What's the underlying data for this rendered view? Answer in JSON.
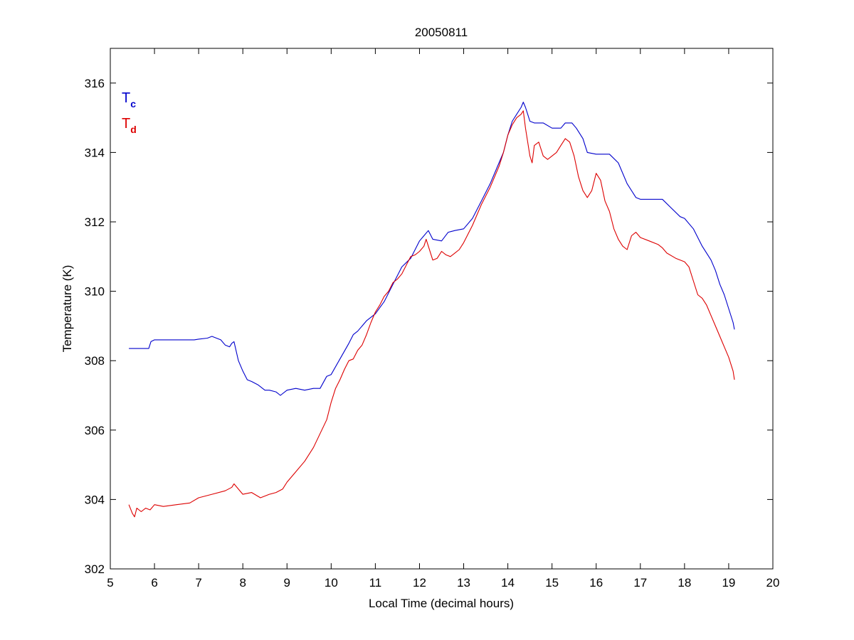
{
  "chart_data": {
    "type": "line",
    "title": "20050811",
    "xlabel": "Local Time (decimal hours)",
    "ylabel": "Temperature (K)",
    "xlim": [
      5,
      20
    ],
    "ylim": [
      302,
      317
    ],
    "xticks": [
      5,
      6,
      7,
      8,
      9,
      10,
      11,
      12,
      13,
      14,
      15,
      16,
      17,
      18,
      19,
      20
    ],
    "yticks": [
      302,
      304,
      306,
      308,
      310,
      312,
      314,
      316
    ],
    "grid": false,
    "legend_placement": "top-left",
    "legend": [
      {
        "base": "T",
        "sub": "c",
        "color": "#0000cc"
      },
      {
        "base": "T",
        "sub": "d",
        "color": "#dd0000"
      }
    ],
    "series": [
      {
        "legend_text": "Tc",
        "color": "#0000cc",
        "x": [
          5.42,
          5.5,
          5.75,
          5.87,
          5.92,
          6.0,
          6.5,
          6.9,
          7.0,
          7.2,
          7.3,
          7.5,
          7.6,
          7.7,
          7.75,
          7.8,
          7.9,
          8.0,
          8.1,
          8.2,
          8.35,
          8.5,
          8.6,
          8.75,
          8.85,
          9.0,
          9.2,
          9.4,
          9.6,
          9.75,
          9.9,
          10.0,
          10.2,
          10.4,
          10.5,
          10.6,
          10.8,
          11.0,
          11.2,
          11.4,
          11.6,
          11.8,
          12.0,
          12.1,
          12.2,
          12.3,
          12.5,
          12.65,
          12.8,
          13.0,
          13.2,
          13.4,
          13.6,
          13.8,
          13.9,
          14.0,
          14.1,
          14.2,
          14.3,
          14.35,
          14.4,
          14.45,
          14.5,
          14.6,
          14.8,
          15.0,
          15.2,
          15.3,
          15.45,
          15.55,
          15.7,
          15.8,
          16.0,
          16.3,
          16.5,
          16.7,
          16.9,
          17.0,
          17.3,
          17.5,
          17.7,
          17.9,
          18.0,
          18.2,
          18.4,
          18.6,
          18.7,
          18.8,
          18.9,
          19.0,
          19.1,
          19.13
        ],
        "y": [
          308.35,
          308.35,
          308.35,
          308.35,
          308.55,
          308.6,
          308.6,
          308.6,
          308.62,
          308.65,
          308.7,
          308.6,
          308.45,
          308.4,
          308.5,
          308.55,
          308.0,
          307.7,
          307.45,
          307.4,
          307.3,
          307.15,
          307.15,
          307.1,
          307.0,
          307.15,
          307.2,
          307.15,
          307.2,
          307.2,
          307.55,
          307.6,
          308.05,
          308.5,
          308.75,
          308.85,
          309.15,
          309.35,
          309.7,
          310.2,
          310.7,
          310.95,
          311.45,
          311.6,
          311.75,
          311.5,
          311.45,
          311.7,
          311.75,
          311.8,
          312.1,
          312.6,
          313.1,
          313.7,
          314.0,
          314.5,
          314.9,
          315.1,
          315.3,
          315.45,
          315.3,
          315.1,
          314.9,
          314.85,
          314.85,
          314.7,
          314.7,
          314.85,
          314.85,
          314.7,
          314.4,
          314.0,
          313.95,
          313.95,
          313.7,
          313.1,
          312.7,
          312.65,
          312.65,
          312.65,
          312.4,
          312.15,
          312.1,
          311.8,
          311.3,
          310.9,
          310.6,
          310.2,
          309.9,
          309.5,
          309.1,
          308.9
        ]
      },
      {
        "legend_text": "Td",
        "color": "#dd0000",
        "x": [
          5.42,
          5.5,
          5.55,
          5.6,
          5.7,
          5.8,
          5.9,
          6.0,
          6.2,
          6.5,
          6.8,
          7.0,
          7.3,
          7.6,
          7.75,
          7.8,
          8.0,
          8.2,
          8.4,
          8.6,
          8.75,
          8.9,
          9.0,
          9.2,
          9.4,
          9.6,
          9.75,
          9.9,
          10.0,
          10.1,
          10.2,
          10.3,
          10.4,
          10.5,
          10.6,
          10.7,
          10.8,
          10.9,
          11.0,
          11.1,
          11.2,
          11.3,
          11.4,
          11.5,
          11.6,
          11.7,
          11.8,
          11.9,
          12.0,
          12.1,
          12.15,
          12.2,
          12.3,
          12.4,
          12.5,
          12.6,
          12.7,
          12.8,
          12.9,
          13.0,
          13.2,
          13.4,
          13.6,
          13.8,
          13.9,
          14.0,
          14.1,
          14.2,
          14.3,
          14.35,
          14.4,
          14.5,
          14.55,
          14.6,
          14.7,
          14.8,
          14.9,
          15.0,
          15.1,
          15.2,
          15.3,
          15.4,
          15.5,
          15.6,
          15.7,
          15.8,
          15.9,
          16.0,
          16.1,
          16.2,
          16.3,
          16.4,
          16.5,
          16.6,
          16.7,
          16.8,
          16.9,
          17.0,
          17.2,
          17.4,
          17.5,
          17.6,
          17.8,
          18.0,
          18.1,
          18.2,
          18.3,
          18.4,
          18.5,
          18.6,
          18.7,
          18.8,
          18.9,
          19.0,
          19.1,
          19.13
        ],
        "y": [
          303.85,
          303.6,
          303.5,
          303.75,
          303.65,
          303.75,
          303.7,
          303.85,
          303.8,
          303.85,
          303.9,
          304.05,
          304.15,
          304.25,
          304.35,
          304.45,
          304.15,
          304.2,
          304.05,
          304.15,
          304.2,
          304.3,
          304.5,
          304.8,
          305.1,
          305.5,
          305.9,
          306.3,
          306.8,
          307.2,
          307.45,
          307.75,
          308.0,
          308.05,
          308.3,
          308.45,
          308.75,
          309.1,
          309.4,
          309.6,
          309.85,
          310.0,
          310.25,
          310.35,
          310.5,
          310.75,
          311.0,
          311.05,
          311.15,
          311.3,
          311.5,
          311.3,
          310.9,
          310.95,
          311.15,
          311.05,
          311.0,
          311.1,
          311.2,
          311.4,
          311.9,
          312.5,
          313.0,
          313.6,
          314.0,
          314.5,
          314.8,
          315.0,
          315.1,
          315.2,
          314.7,
          313.9,
          313.7,
          314.2,
          314.3,
          313.9,
          313.8,
          313.9,
          314.0,
          314.2,
          314.4,
          314.3,
          313.9,
          313.3,
          312.9,
          312.7,
          312.9,
          313.4,
          313.2,
          312.6,
          312.3,
          311.8,
          311.5,
          311.3,
          311.2,
          311.6,
          311.7,
          311.55,
          311.45,
          311.35,
          311.25,
          311.1,
          310.95,
          310.85,
          310.7,
          310.3,
          309.9,
          309.8,
          309.6,
          309.3,
          309.0,
          308.7,
          308.4,
          308.1,
          307.7,
          307.45
        ]
      }
    ]
  }
}
